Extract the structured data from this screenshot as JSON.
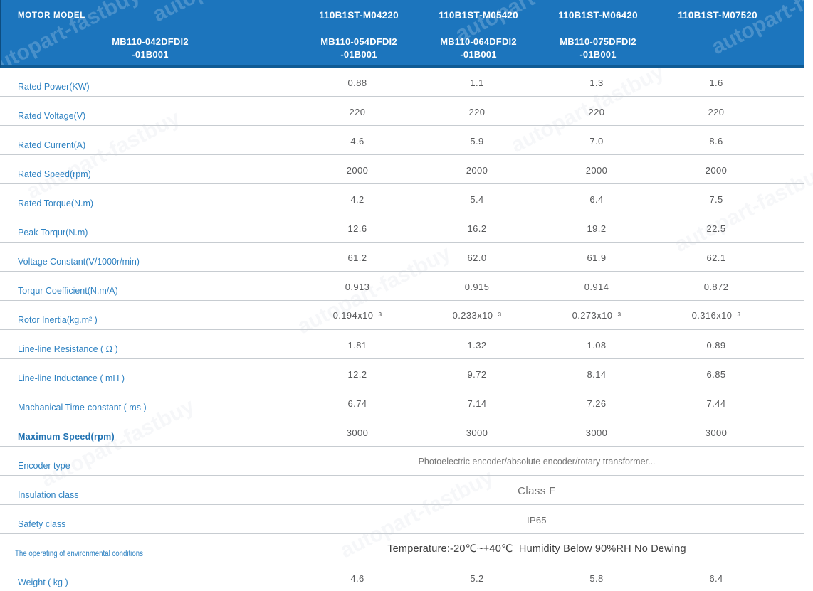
{
  "watermark": {
    "text": "autopart-fastbuy"
  },
  "colors": {
    "header_bg": "#1c75bd",
    "header_divider": "#5aa0d4",
    "header_bottom_border": "#0f5b95",
    "label_blue": "#2e82c2",
    "value_gray": "#58595b",
    "row_line_gray": "#c7ccd1"
  },
  "table": {
    "header": {
      "label": "MOTOR MODEL",
      "models": [
        "110B1ST-M04220",
        "110B1ST-M05420",
        "110B1ST-M06420",
        "110B1ST-M07520"
      ],
      "sub_models": [
        "MB110-042DFDI2\n-01B001",
        "MB110-054DFDI2\n-01B001",
        "MB110-064DFDI2\n-01B001",
        "MB110-075DFDI2\n-01B001"
      ]
    },
    "rows": [
      {
        "label": "Rated Power(KW)",
        "values": [
          "0.88",
          "1.1",
          "1.3",
          "1.6"
        ]
      },
      {
        "label": "Rated Voltage(V)",
        "values": [
          "220",
          "220",
          "220",
          "220"
        ]
      },
      {
        "label": "Rated Current(A)",
        "values": [
          "4.6",
          "5.9",
          "7.0",
          "8.6"
        ]
      },
      {
        "label": "Rated Speed(rpm)",
        "values": [
          "2000",
          "2000",
          "2000",
          "2000"
        ]
      },
      {
        "label": "Rated Torque(N.m)",
        "values": [
          "4.2",
          "5.4",
          "6.4",
          "7.5"
        ]
      },
      {
        "label": "Peak Torqur(N.m)",
        "values": [
          "12.6",
          "16.2",
          "19.2",
          "22.5"
        ]
      },
      {
        "label": "Voltage Constant(V/1000r/min)",
        "values": [
          "61.2",
          "62.0",
          "61.9",
          "62.1"
        ]
      },
      {
        "label": "Torqur Coefficient(N.m/A)",
        "values": [
          "0.913",
          "0.915",
          "0.914",
          "0.872"
        ]
      },
      {
        "label": "Rotor Inertia(kg.m² )",
        "values": [
          "0.194x10⁻³",
          "0.233x10⁻³",
          "0.273x10⁻³",
          "0.316x10⁻³"
        ]
      },
      {
        "label": "Line-line Resistance ( Ω )",
        "values": [
          "1.81",
          "1.32",
          "1.08",
          "0.89"
        ]
      },
      {
        "label": "Line-line Inductance ( mH )",
        "values": [
          "12.2",
          "9.72",
          "8.14",
          "6.85"
        ]
      },
      {
        "label": "Machanical Time-constant ( ms )",
        "values": [
          "6.74",
          "7.14",
          "7.26",
          "7.44"
        ]
      },
      {
        "label": "Maximum Speed(rpm)",
        "label_style": "bold",
        "values": [
          "3000",
          "3000",
          "3000",
          "3000"
        ]
      },
      {
        "label": "Encoder type",
        "span": "Photoelectric encoder/absolute encoder/rotary transformer...",
        "span_style": "small"
      },
      {
        "label": "Insulation class",
        "span": "Class F",
        "span_style": "large"
      },
      {
        "label": "Safety class",
        "span": "IP65",
        "span_style": "medium"
      },
      {
        "label": "The operating of environmental conditions",
        "label_style": "condensed",
        "span": "Temperature:-20℃~+40℃  Humidity Below 90%RH No Dewing",
        "span_style": "xlarge"
      },
      {
        "label": "Weight ( kg )",
        "values": [
          "4.6",
          "5.2",
          "5.8",
          "6.4"
        ]
      }
    ]
  }
}
